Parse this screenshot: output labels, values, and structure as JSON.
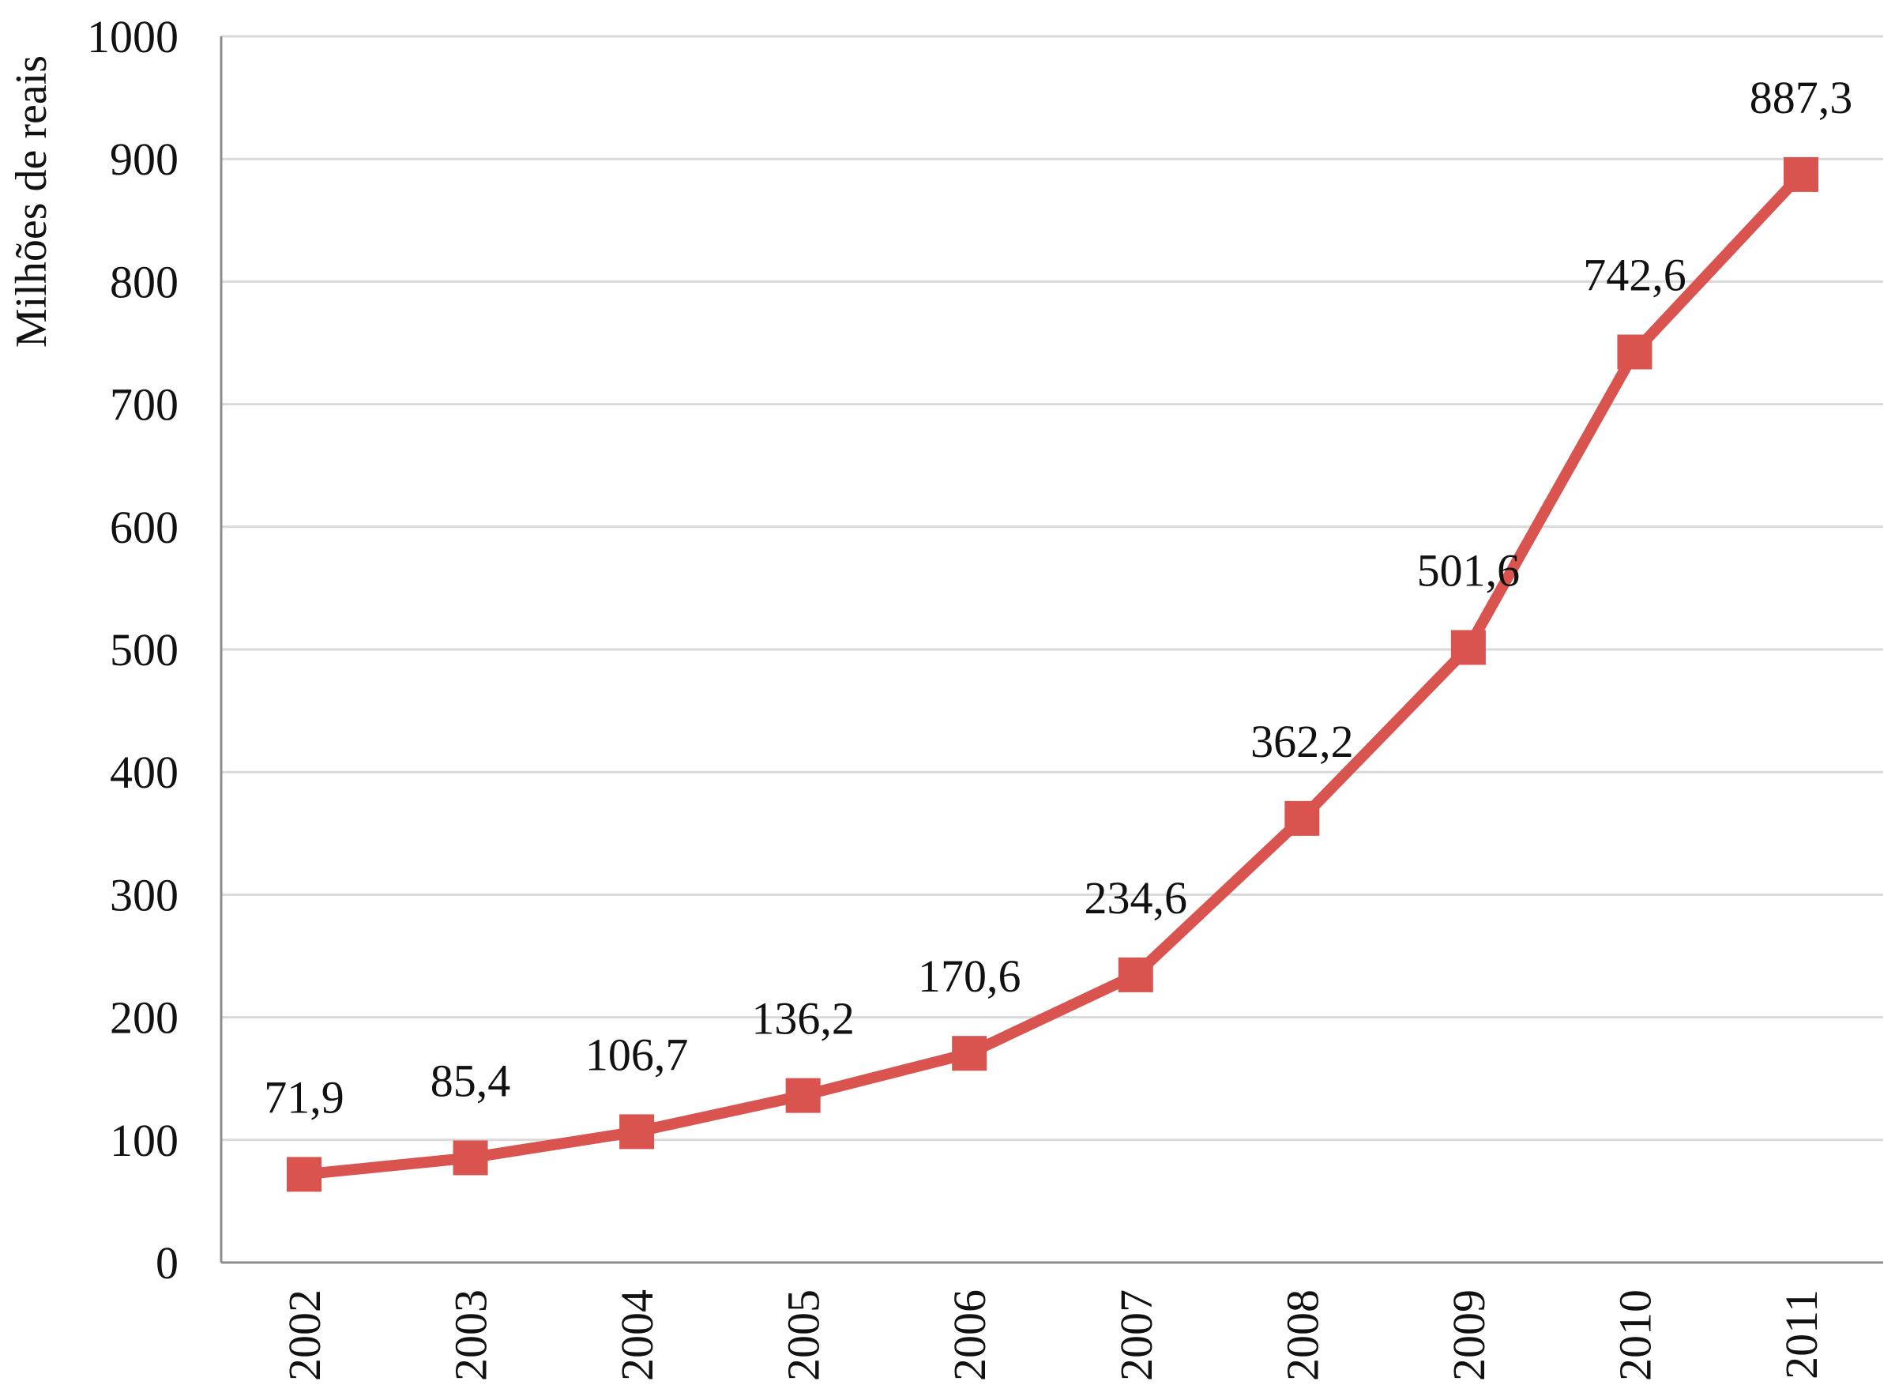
{
  "colors": {
    "series": "#d9534f",
    "grid": "#d9d9d9",
    "axis": "#8c8c8c",
    "text": "#111111"
  },
  "chart_data": {
    "type": "line",
    "title": "",
    "xlabel": "",
    "ylabel": "Milhões de reais",
    "categories": [
      "2002",
      "2003",
      "2004",
      "2005",
      "2006",
      "2007",
      "2008",
      "2009",
      "2010",
      "2011"
    ],
    "series": [
      {
        "values": [
          71.9,
          85.4,
          106.7,
          136.2,
          170.6,
          234.6,
          362.2,
          501.6,
          742.6,
          887.3
        ],
        "labels": [
          "71,9",
          "85,4",
          "106,7",
          "136,2",
          "170,6",
          "234,6",
          "362,2",
          "501,6",
          "742,6",
          "887,3"
        ],
        "marker": "square"
      }
    ],
    "ylim": [
      0,
      1000
    ],
    "yticks": [
      "0",
      "100",
      "200",
      "300",
      "400",
      "500",
      "600",
      "700",
      "800",
      "900",
      "1000"
    ],
    "grid": true,
    "legend": "none"
  }
}
